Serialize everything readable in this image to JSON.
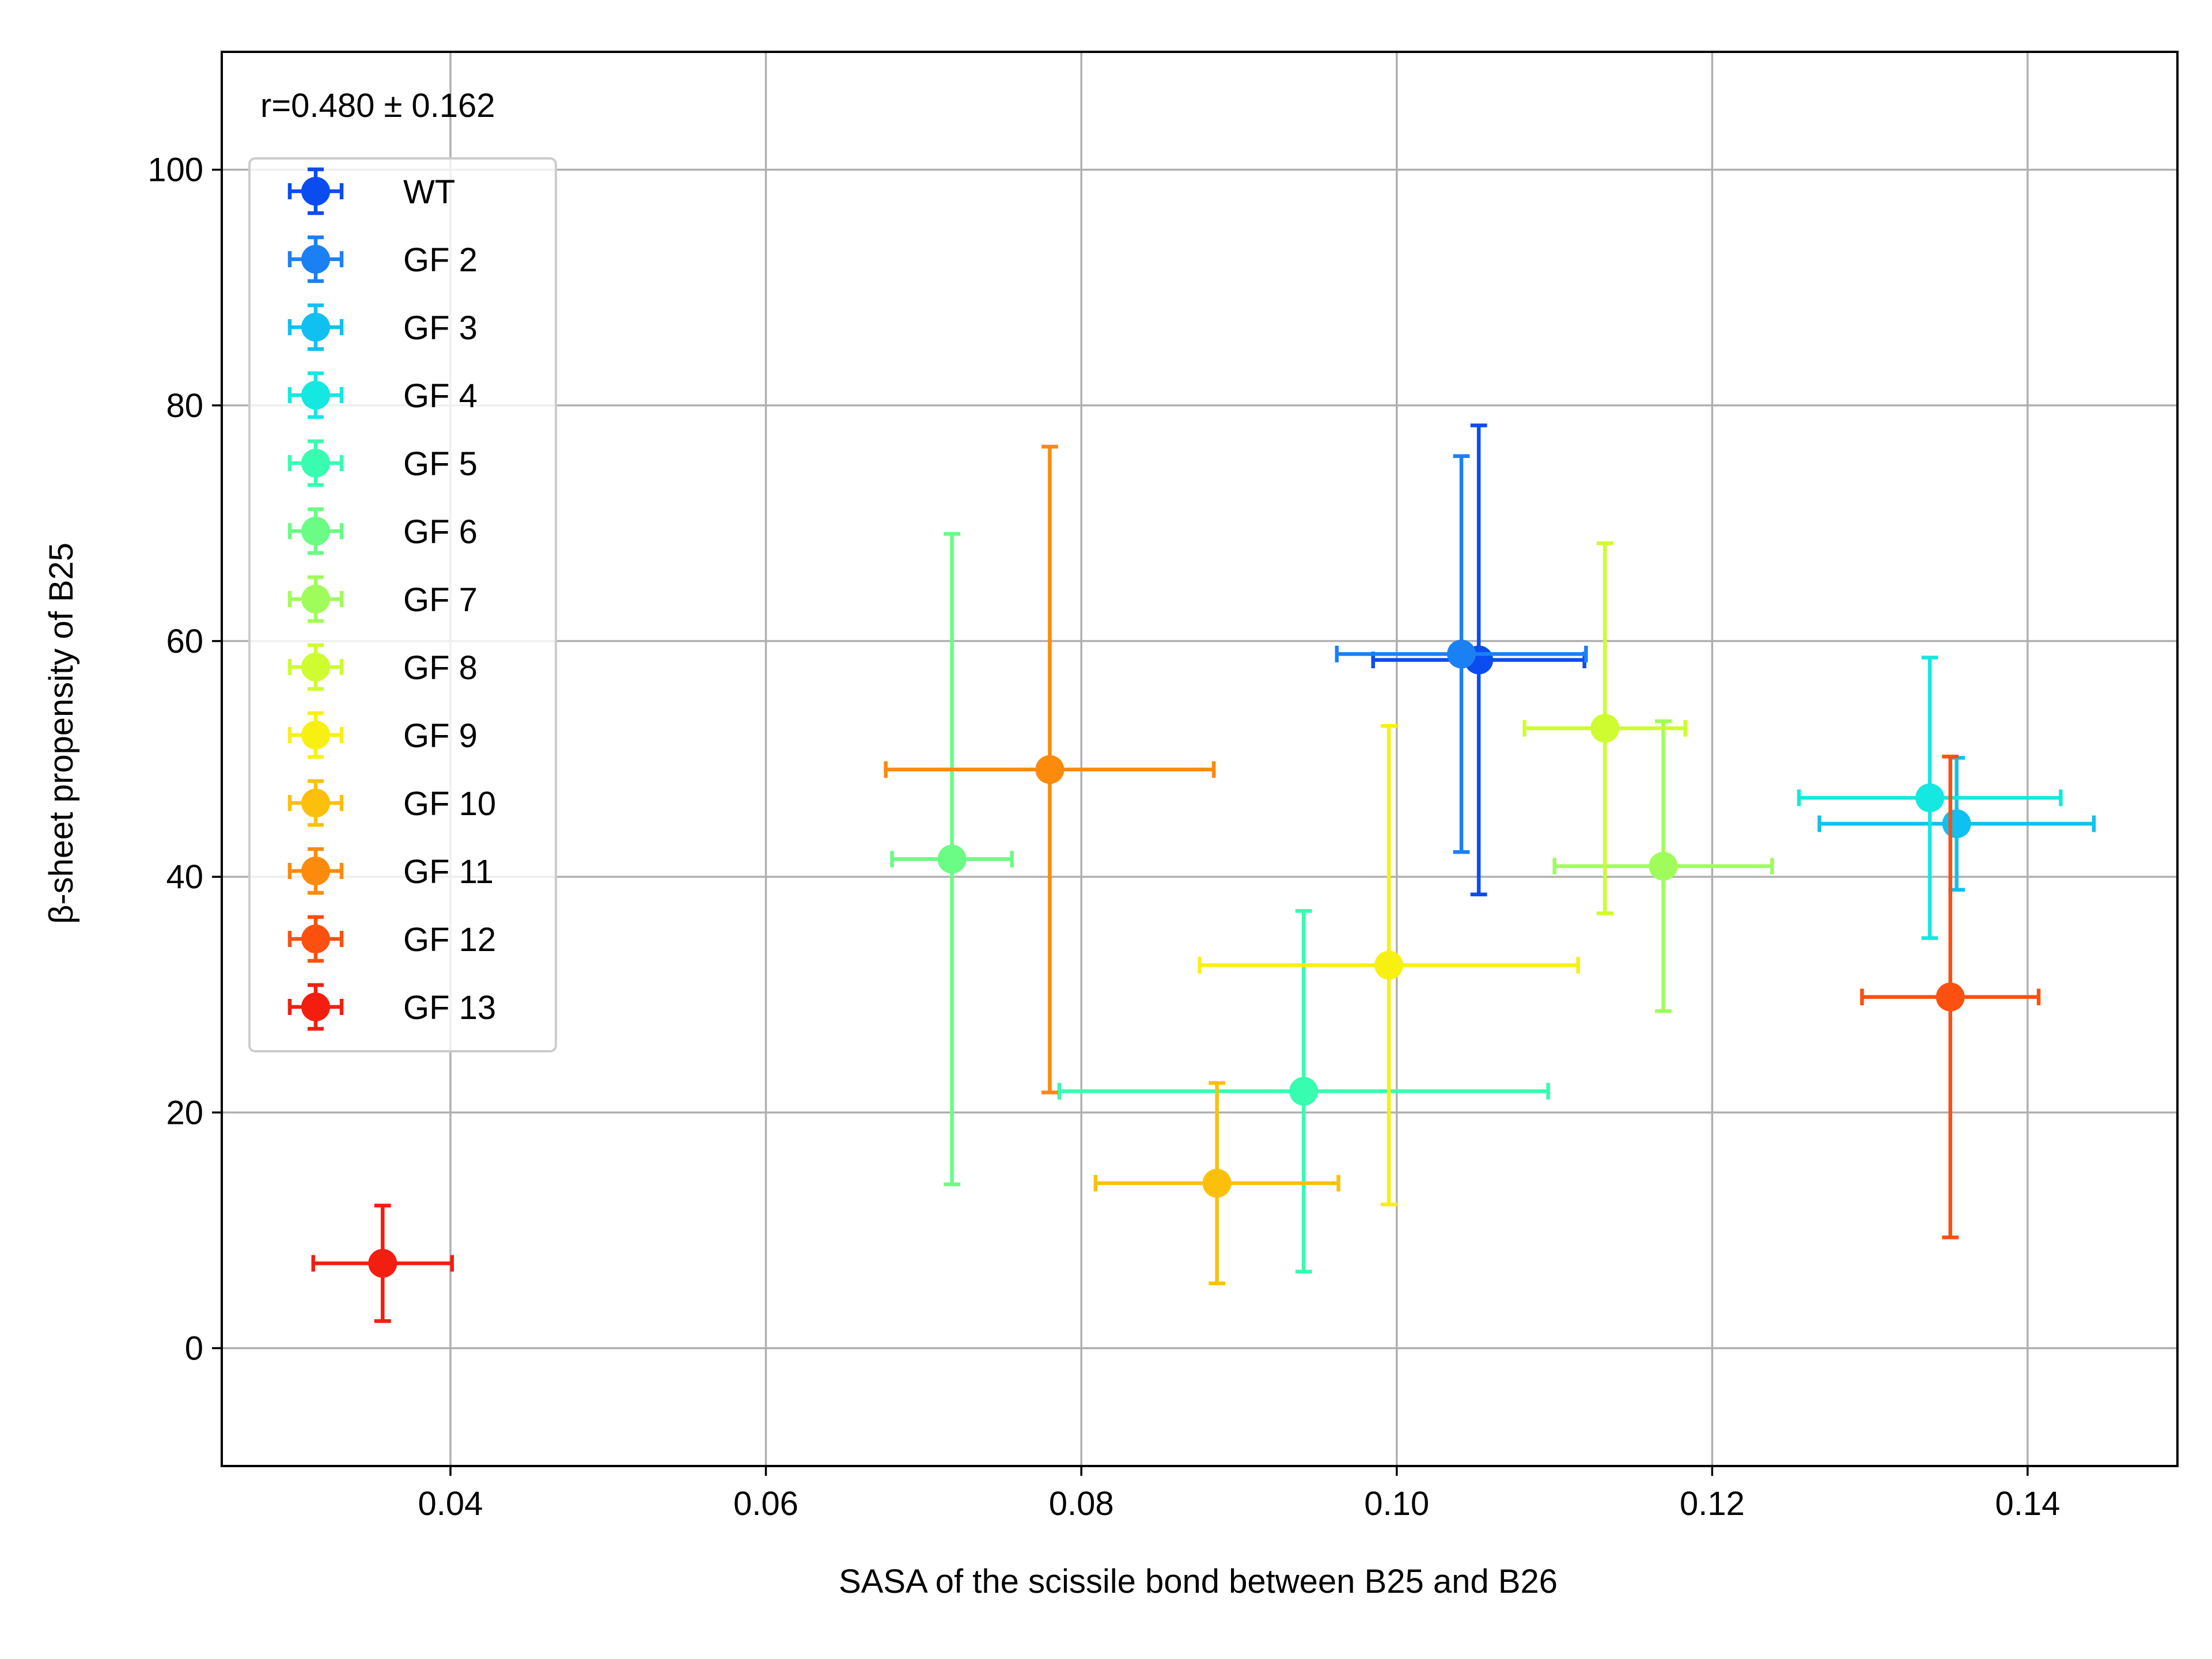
{
  "chart_data": {
    "type": "scatter",
    "title": "",
    "xlabel": "SASA of the scissile bond between B25 and B26",
    "ylabel": "β-sheet propensity of B25",
    "xlim": [
      0.0255,
      0.1495
    ],
    "ylim": [
      -10,
      110
    ],
    "xticks": [
      "0.04",
      "0.06",
      "0.08",
      "0.10",
      "0.12",
      "0.14"
    ],
    "yticks": [
      "0",
      "20",
      "40",
      "60",
      "80",
      "100"
    ],
    "grid": true,
    "legend_position": "upper-left",
    "annotation": "r=0.480 ± 0.162",
    "error_bars": true,
    "series": [
      {
        "name": "WT",
        "color": "#0a4cf0",
        "x": 0.1052,
        "y": 58.4,
        "xerr": 0.0067,
        "yerr": 19.9
      },
      {
        "name": "GF 2",
        "color": "#1c80f5",
        "x": 0.1041,
        "y": 58.9,
        "xerr": 0.0079,
        "yerr": 16.8
      },
      {
        "name": "GF 3",
        "color": "#10c0f0",
        "x": 0.1355,
        "y": 44.5,
        "xerr": 0.0087,
        "yerr": 5.6
      },
      {
        "name": "GF 4",
        "color": "#14e8e0",
        "x": 0.1338,
        "y": 46.7,
        "xerr": 0.0083,
        "yerr": 11.9
      },
      {
        "name": "GF 5",
        "color": "#38fcb0",
        "x": 0.0941,
        "y": 21.8,
        "xerr": 0.0155,
        "yerr": 15.3
      },
      {
        "name": "GF 6",
        "color": "#6afc84",
        "x": 0.0718,
        "y": 41.5,
        "xerr": 0.0038,
        "yerr": 27.6
      },
      {
        "name": "GF 7",
        "color": "#a0fc5a",
        "x": 0.1169,
        "y": 40.9,
        "xerr": 0.0069,
        "yerr": 12.3
      },
      {
        "name": "GF 8",
        "color": "#cefc30",
        "x": 0.1132,
        "y": 52.6,
        "xerr": 0.0051,
        "yerr": 15.7
      },
      {
        "name": "GF 9",
        "color": "#f8f010",
        "x": 0.0995,
        "y": 32.5,
        "xerr": 0.012,
        "yerr": 20.3
      },
      {
        "name": "GF 10",
        "color": "#fcc00c",
        "x": 0.0886,
        "y": 14.0,
        "xerr": 0.0077,
        "yerr": 8.5
      },
      {
        "name": "GF 11",
        "color": "#fc8a0c",
        "x": 0.078,
        "y": 49.1,
        "xerr": 0.0104,
        "yerr": 27.4
      },
      {
        "name": "GF 12",
        "color": "#fc5010",
        "x": 0.1351,
        "y": 29.8,
        "xerr": 0.0056,
        "yerr": 20.4
      },
      {
        "name": "GF 13",
        "color": "#f41e10",
        "x": 0.0357,
        "y": 7.2,
        "xerr": 0.0044,
        "yerr": 4.9
      }
    ]
  }
}
